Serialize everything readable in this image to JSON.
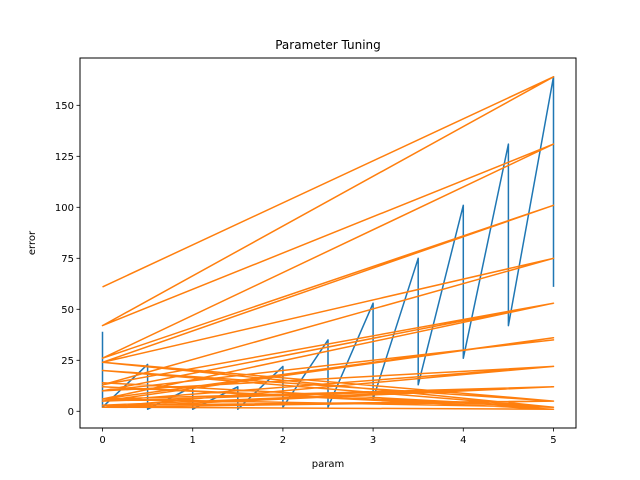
{
  "chart_data": {
    "type": "line",
    "title": "Parameter Tuning",
    "xlabel": "param",
    "ylabel": "error",
    "xlim": [
      -0.25,
      5.25
    ],
    "ylim": [
      -8.2,
      173.2
    ],
    "xticks": [
      0,
      1,
      2,
      3,
      4,
      5
    ],
    "yticks": [
      0,
      25,
      50,
      75,
      100,
      125,
      150
    ],
    "grid": false,
    "legend": "none",
    "series": [
      {
        "color": "#1f77b4",
        "x": [
          0,
          0,
          0.5,
          0.5,
          1,
          1,
          1.5,
          1.5,
          2,
          2,
          2.5,
          2.5,
          3,
          3,
          3.5,
          3.5,
          4,
          4,
          4.5,
          4.5,
          5,
          5
        ],
        "y": [
          39,
          2,
          23,
          1,
          12,
          1,
          12,
          1,
          22,
          2,
          35,
          2,
          53,
          6,
          75,
          13,
          101,
          26,
          131,
          42,
          164,
          61
        ]
      },
      {
        "color": "#ff7f0e",
        "x": [
          0,
          5,
          0,
          5,
          0,
          5,
          0,
          5,
          0,
          5,
          0,
          5,
          0,
          5,
          0,
          5,
          0,
          5,
          0,
          5,
          0,
          5,
          0,
          5,
          0,
          5,
          0,
          5,
          0,
          5,
          0,
          5,
          0,
          5,
          0,
          5,
          0,
          5,
          0,
          5
        ],
        "y": [
          61,
          164,
          42,
          131,
          42,
          131,
          26,
          101,
          26,
          101,
          24,
          75,
          13,
          53,
          10,
          35,
          10,
          22,
          5,
          12,
          3,
          5,
          2,
          1,
          12,
          2,
          14,
          2,
          20,
          5,
          24,
          2,
          6,
          12,
          2,
          22,
          5,
          36,
          6,
          53
        ]
      }
    ]
  }
}
